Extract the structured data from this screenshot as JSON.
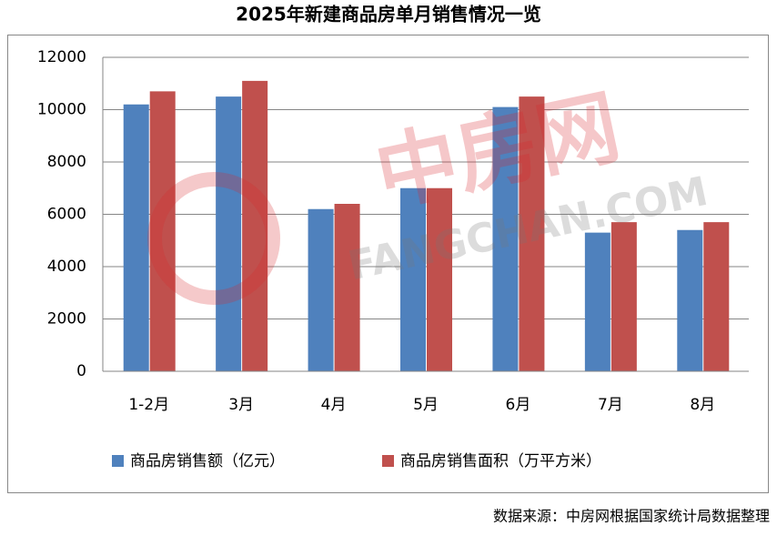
{
  "chart_data": {
    "type": "bar",
    "title": "2025年新建商品房单月销售情况一览",
    "categories": [
      "1-2月",
      "3月",
      "4月",
      "5月",
      "6月",
      "7月",
      "8月"
    ],
    "series": [
      {
        "name": "商品房销售额（亿元）",
        "color": "#4f81bd",
        "values": [
          10200,
          10500,
          6200,
          7000,
          10100,
          5300,
          5400
        ]
      },
      {
        "name": "商品房销售面积（万平方米）",
        "color": "#c0504d",
        "values": [
          10700,
          11100,
          6400,
          7000,
          10500,
          5700,
          5700
        ]
      }
    ],
    "ylim": [
      0,
      12000
    ],
    "yticks": [
      0,
      2000,
      4000,
      6000,
      8000,
      10000,
      12000
    ],
    "grid": true,
    "legend": "bottom",
    "source": "数据来源：中房网根据国家统计局数据整理",
    "watermark": [
      "中房网",
      "FANGCHAN.COM"
    ]
  }
}
